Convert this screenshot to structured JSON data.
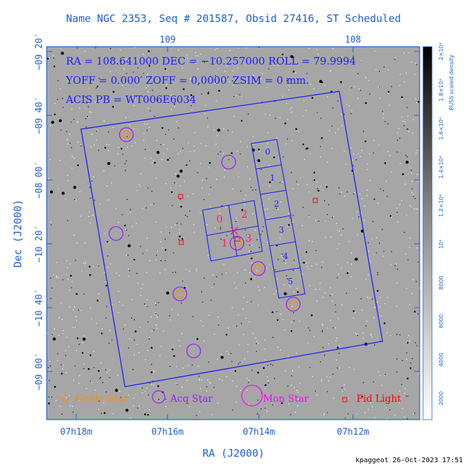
{
  "title": "Name NGC 2353, Seq # 201587, Obsid 27416, ST Scheduled",
  "info_lines": {
    "line1": "RA = 108.641000    DEC = −10.257000    ROLL = 79.9994",
    "line2": "YOFF =   0.000′    ZOFF =   0.0000′    ZSIM = 0 mm.",
    "line3": "ACIS PB = WT006E6034"
  },
  "footer": "kpaggeot 26-Oct-2023 17:51",
  "colors": {
    "axis": "#1e5fd0",
    "field": "#1c1cff",
    "ccd_label": "#ff1f6b",
    "guide": "#ff8c00",
    "acq": "#9b1cff",
    "mon": "#ff00ff",
    "fid": "#ff0000"
  },
  "chart_data": {
    "type": "scatter",
    "xlabel": "RA (J2000)",
    "ylabel": "Dec (J2000)",
    "top_tick_labels": [
      "109",
      "108"
    ],
    "bottom_tick_labels": [
      "07h18m",
      "07h16m",
      "07h14m",
      "07h12m"
    ],
    "left_tick_labels": [
      "−09 20′",
      "−09 40′",
      "−08 00′",
      "−08 20′",
      "−10 20′",
      "−10 40′",
      "−09 00′"
    ],
    "ccd_labels": [
      "0",
      "1",
      "2",
      "3",
      "4",
      "5"
    ],
    "chip_labels": [
      "0",
      "2",
      "1",
      "3"
    ],
    "legend": [
      "Guide Star",
      "Acq Star",
      "Mon Star",
      "Fid Light"
    ],
    "colorbar": {
      "label": "PUSS scaled density",
      "tick_labels": [
        "2000",
        "4000",
        "6000",
        "8000",
        "10⁴",
        "1.2×10⁴",
        "1.4×10⁴",
        "1.6×10⁴",
        "1.8×10⁴",
        "2×10⁴"
      ]
    },
    "acq_stars": 9,
    "fid_lights": 4
  }
}
